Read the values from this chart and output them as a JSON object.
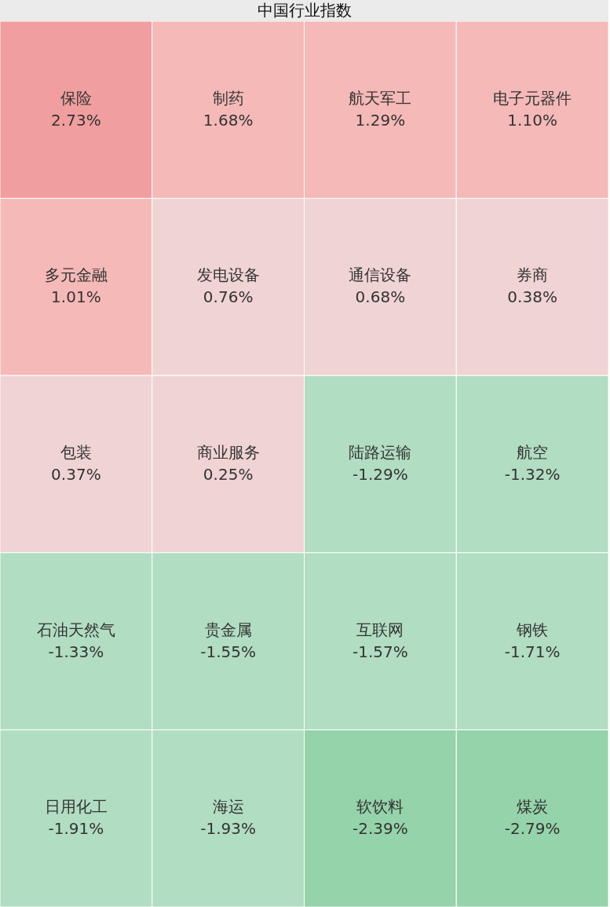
{
  "chart_data": {
    "type": "other",
    "title": "中国行业指数",
    "categories": [
      "保险",
      "制药",
      "航天军工",
      "电子元器件",
      "多元金融",
      "发电设备",
      "通信设备",
      "券商",
      "包装",
      "商业服务",
      "陆路运输",
      "航空",
      "石油天然气",
      "贵金属",
      "互联网",
      "钢铁",
      "日用化工",
      "海运",
      "软饮料",
      "煤炭"
    ],
    "values": [
      2.73,
      1.68,
      1.29,
      1.1,
      1.01,
      0.76,
      0.68,
      0.38,
      0.37,
      0.25,
      -1.29,
      -1.32,
      -1.33,
      -1.55,
      -1.57,
      -1.71,
      -1.91,
      -1.93,
      -2.39,
      -2.79
    ],
    "value_labels": [
      "2.73%",
      "1.68%",
      "1.29%",
      "1.10%",
      "1.01%",
      "0.76%",
      "0.68%",
      "0.38%",
      "0.37%",
      "0.25%",
      "-1.29%",
      "-1.32%",
      "-1.33%",
      "-1.55%",
      "-1.57%",
      "-1.71%",
      "-1.91%",
      "-1.93%",
      "-2.39%",
      "-2.79%"
    ],
    "colors": [
      "#f19e9e",
      "#f5b9b8",
      "#f5b9b8",
      "#f5b9b8",
      "#f5b9b8",
      "#f0d3d3",
      "#f0d3d3",
      "#f0d3d3",
      "#f0d3d3",
      "#f0d3d3",
      "#b1ddc2",
      "#b1ddc2",
      "#b1ddc2",
      "#b1ddc2",
      "#b1ddc2",
      "#b1ddc2",
      "#b1ddc2",
      "#b1ddc2",
      "#95d3aa",
      "#95d3aa"
    ]
  }
}
